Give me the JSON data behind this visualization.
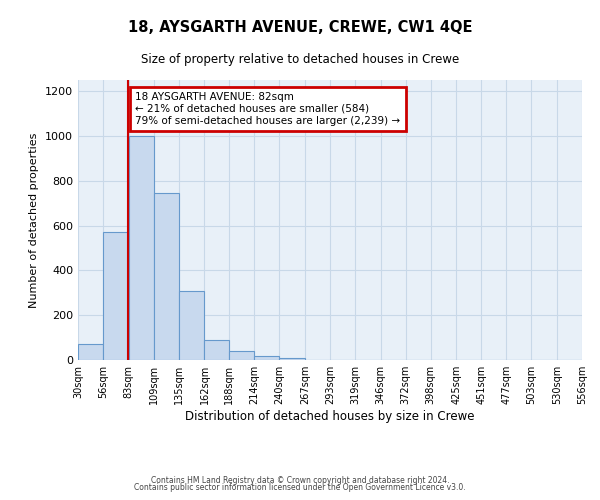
{
  "title_main": "18, AYSGARTH AVENUE, CREWE, CW1 4QE",
  "title_sub": "Size of property relative to detached houses in Crewe",
  "xlabel": "Distribution of detached houses by size in Crewe",
  "ylabel": "Number of detached properties",
  "bin_edges": [
    30,
    56,
    83,
    109,
    135,
    162,
    188,
    214,
    240,
    267,
    293,
    319,
    346,
    372,
    398,
    425,
    451,
    477,
    503,
    530,
    556
  ],
  "bar_heights": [
    70,
    570,
    1000,
    745,
    310,
    90,
    40,
    20,
    10,
    0,
    0,
    0,
    0,
    0,
    0,
    0,
    0,
    0,
    0,
    0
  ],
  "bar_color": "#c8d9ee",
  "bar_edge_color": "#6699cc",
  "property_size": 82,
  "vline_color": "#cc0000",
  "annotation_line1": "18 AYSGARTH AVENUE: 82sqm",
  "annotation_line2": "← 21% of detached houses are smaller (584)",
  "annotation_line3": "79% of semi-detached houses are larger (2,239) →",
  "annotation_box_color": "#cc0000",
  "annotation_text_color": "#000000",
  "background_color": "#ffffff",
  "axes_bg_color": "#e8f0f8",
  "grid_color": "#c8d8e8",
  "ylim": [
    0,
    1250
  ],
  "yticks": [
    0,
    200,
    400,
    600,
    800,
    1000,
    1200
  ],
  "footer_line1": "Contains HM Land Registry data © Crown copyright and database right 2024.",
  "footer_line2": "Contains public sector information licensed under the Open Government Licence v3.0."
}
